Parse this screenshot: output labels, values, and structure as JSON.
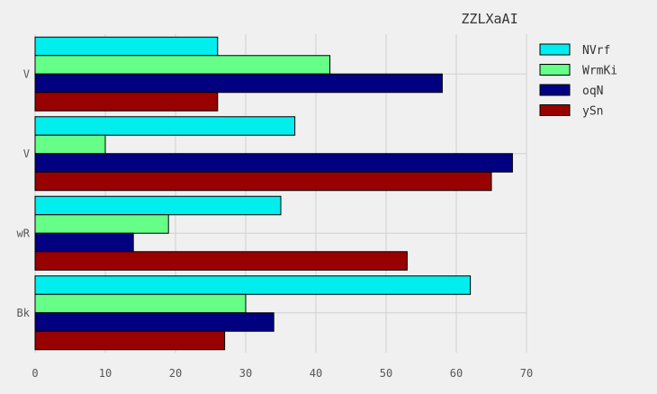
{
  "chart_data": {
    "type": "bar",
    "orientation": "horizontal",
    "title": "ZZLXaAI",
    "xlabel": "",
    "ylabel": "",
    "categories": [
      "Bk",
      "wR",
      "V",
      "V"
    ],
    "series": [
      {
        "name": "NVrf",
        "color": "#00eeee",
        "values": [
          62,
          35,
          37,
          26
        ]
      },
      {
        "name": "WrmKi",
        "color": "#66ff88",
        "values": [
          30,
          19,
          10,
          42
        ]
      },
      {
        "name": "oqN",
        "color": "#000080",
        "values": [
          34,
          14,
          68,
          58
        ]
      },
      {
        "name": "ySn",
        "color": "#990000",
        "values": [
          27,
          53,
          65,
          26
        ]
      }
    ],
    "xlim": [
      0,
      70
    ],
    "xticks": [
      0,
      10,
      20,
      30,
      40,
      50,
      60,
      70
    ],
    "grid": true,
    "legend_position": "top-right"
  }
}
